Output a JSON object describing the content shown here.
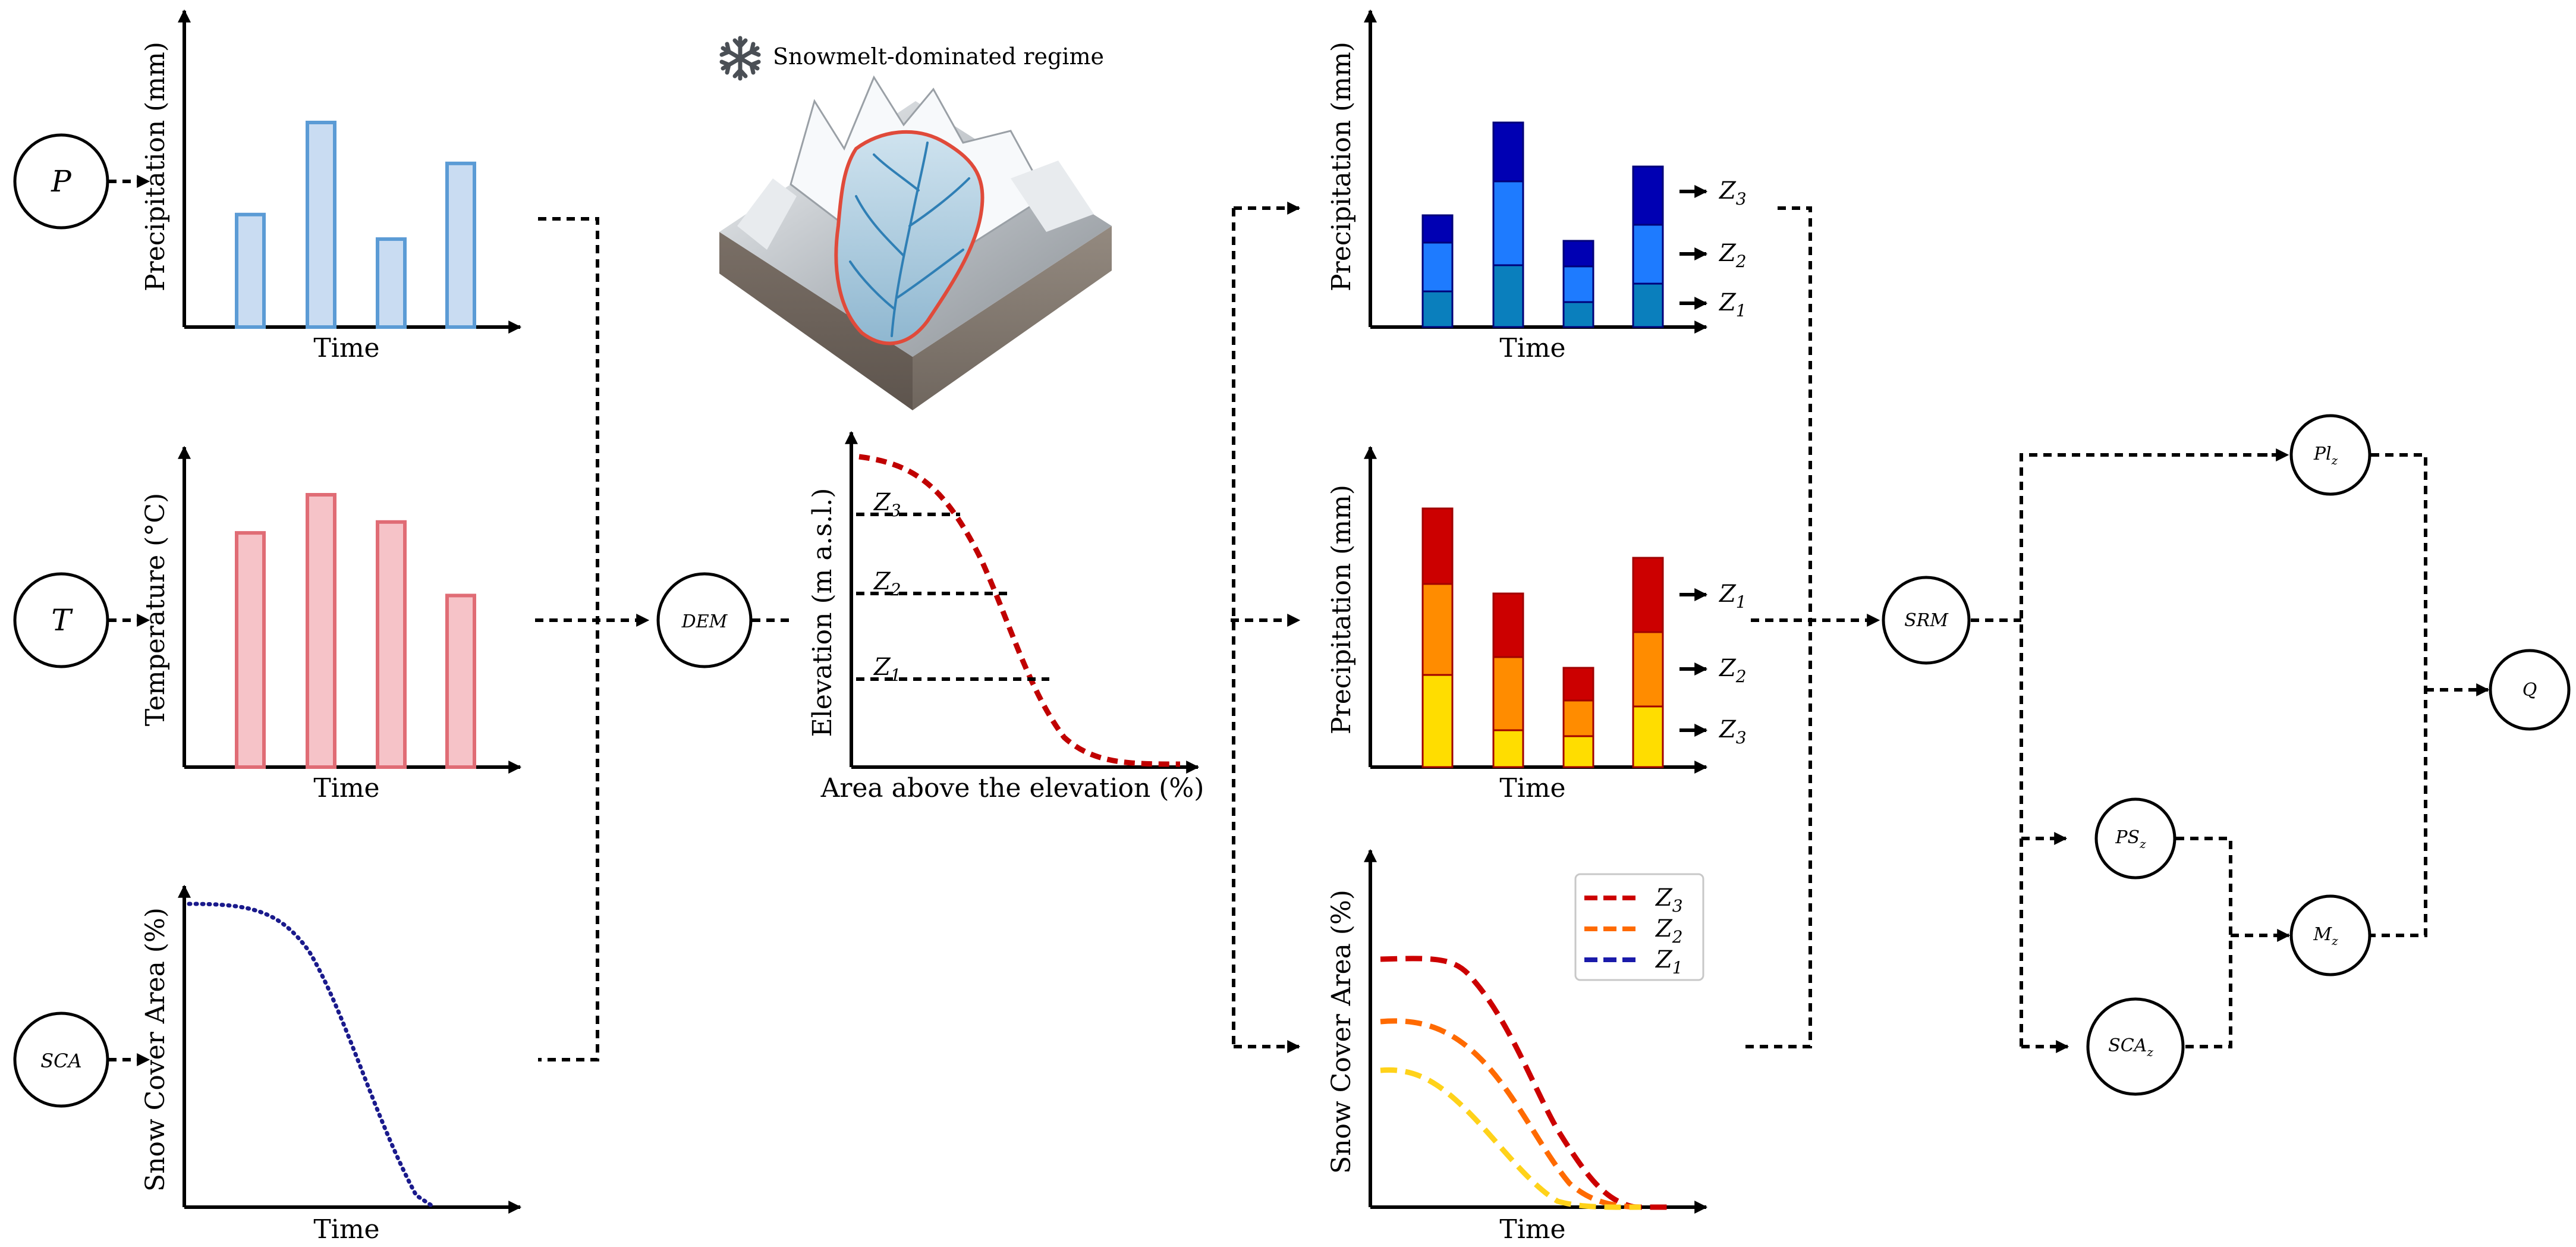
{
  "inputs": {
    "precip": {
      "node": "P",
      "xlabel": "Time",
      "ylabel": "Precipitation (mm)",
      "color": "#5b9bd5",
      "fill": "#c9dcf2",
      "values": [
        0.55,
        1.0,
        0.43,
        0.8
      ]
    },
    "temp": {
      "node": "T",
      "xlabel": "Time",
      "ylabel": "Temperature (°C)",
      "color": "#e06c75",
      "fill": "#f6c3c8",
      "values": [
        0.86,
        1.0,
        0.9,
        0.63
      ]
    },
    "sca": {
      "node": "SCA",
      "xlabel": "Time",
      "ylabel": "Snow Cover Area (%)",
      "color": "#1a1a8c"
    }
  },
  "dem": {
    "node": "DEM",
    "caption": "Snowmelt-dominated regime",
    "snowflake_icon": "snowflake-icon",
    "hypsometric": {
      "xlabel": "Area above the elevation (%)",
      "ylabel": "Elevation (m a.s.l.)",
      "color": "#c00000",
      "zones": [
        "Z3",
        "Z2",
        "Z1"
      ]
    }
  },
  "zoned": {
    "precip": {
      "xlabel": "Time",
      "ylabel": "Precipitation (mm)",
      "zone_labels": [
        "Z3",
        "Z2",
        "Z1"
      ],
      "colors": [
        "#0000b3",
        "#1e7bff",
        "#0a7fbd"
      ]
    },
    "temp": {
      "xlabel": "Time",
      "ylabel": "Precipitation (mm)",
      "zone_labels": [
        "Z1",
        "Z2",
        "Z3"
      ],
      "colors": [
        "#cc0000",
        "#ff8c00",
        "#ffdd00"
      ]
    },
    "sca": {
      "xlabel": "Time",
      "ylabel": "Snow Cover Area (%)",
      "legend": [
        "Z3",
        "Z2",
        "Z1"
      ],
      "colors": [
        "#cc0000",
        "#ff6a00",
        "#1a1aaa"
      ]
    }
  },
  "model": {
    "srm": "SRM",
    "pl": "Pl",
    "pl_sub": "z",
    "ps": "PS",
    "ps_sub": "z",
    "scaz": "SCA",
    "scaz_sub": "z",
    "mz": "M",
    "mz_sub": "z",
    "q": "Q"
  }
}
